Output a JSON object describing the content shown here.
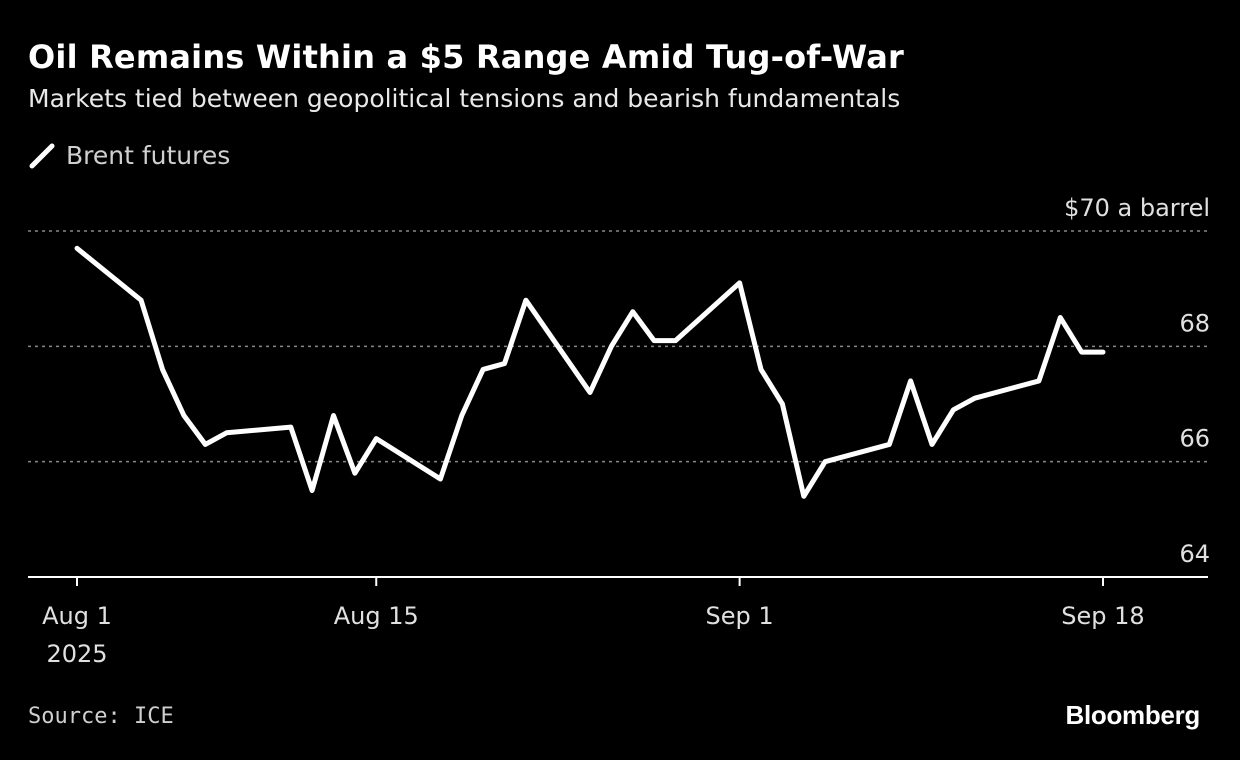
{
  "header": {
    "title": "Oil Remains Within a $5 Range Amid Tug-of-War",
    "subtitle": "Markets tied between geopolitical tensions and bearish fundamentals"
  },
  "footer": {
    "source": "Source: ICE",
    "brand": "Bloomberg"
  },
  "colors": {
    "background": "#000000",
    "line": "#ffffff",
    "gridline": "#888888",
    "text": "#e0e0e0"
  },
  "chart_data": {
    "type": "line",
    "title": "Oil Remains Within a $5 Range Amid Tug-of-War",
    "subtitle": "Markets tied between geopolitical tensions and bearish fundamentals",
    "ylabel": "$70 a barrel",
    "ylim": [
      64,
      70
    ],
    "xlim": [
      "2025-07-30",
      "2025-09-23"
    ],
    "grid": "horizontal dotted",
    "legend": "top-left",
    "y_ticks": [
      {
        "value": 70,
        "label": "$70 a barrel"
      },
      {
        "value": 68,
        "label": "68"
      },
      {
        "value": 66,
        "label": "66"
      },
      {
        "value": 64,
        "label": "64"
      }
    ],
    "x_ticks": [
      {
        "date": "2025-08-01",
        "label": "Aug 1",
        "sublabel": "2025"
      },
      {
        "date": "2025-08-15",
        "label": "Aug 15",
        "sublabel": ""
      },
      {
        "date": "2025-09-01",
        "label": "Sep 1",
        "sublabel": ""
      },
      {
        "date": "2025-09-18",
        "label": "Sep 18",
        "sublabel": ""
      }
    ],
    "series": [
      {
        "name": "Brent futures",
        "x": [
          "2025-08-01",
          "2025-08-04",
          "2025-08-05",
          "2025-08-06",
          "2025-08-07",
          "2025-08-08",
          "2025-08-11",
          "2025-08-12",
          "2025-08-13",
          "2025-08-14",
          "2025-08-15",
          "2025-08-18",
          "2025-08-19",
          "2025-08-20",
          "2025-08-21",
          "2025-08-22",
          "2025-08-25",
          "2025-08-26",
          "2025-08-27",
          "2025-08-28",
          "2025-08-29",
          "2025-09-01",
          "2025-09-02",
          "2025-09-03",
          "2025-09-04",
          "2025-09-05",
          "2025-09-08",
          "2025-09-09",
          "2025-09-10",
          "2025-09-11",
          "2025-09-12",
          "2025-09-15",
          "2025-09-16",
          "2025-09-17",
          "2025-09-18"
        ],
        "values": [
          69.7,
          68.8,
          67.6,
          66.8,
          66.3,
          66.5,
          66.6,
          65.5,
          66.8,
          65.8,
          66.4,
          65.7,
          66.8,
          67.6,
          67.7,
          68.8,
          67.2,
          68.0,
          68.6,
          68.1,
          68.1,
          69.1,
          67.6,
          67.0,
          65.4,
          66.0,
          66.3,
          67.4,
          66.3,
          66.9,
          67.1,
          67.4,
          68.5,
          67.9,
          67.9
        ]
      }
    ]
  }
}
